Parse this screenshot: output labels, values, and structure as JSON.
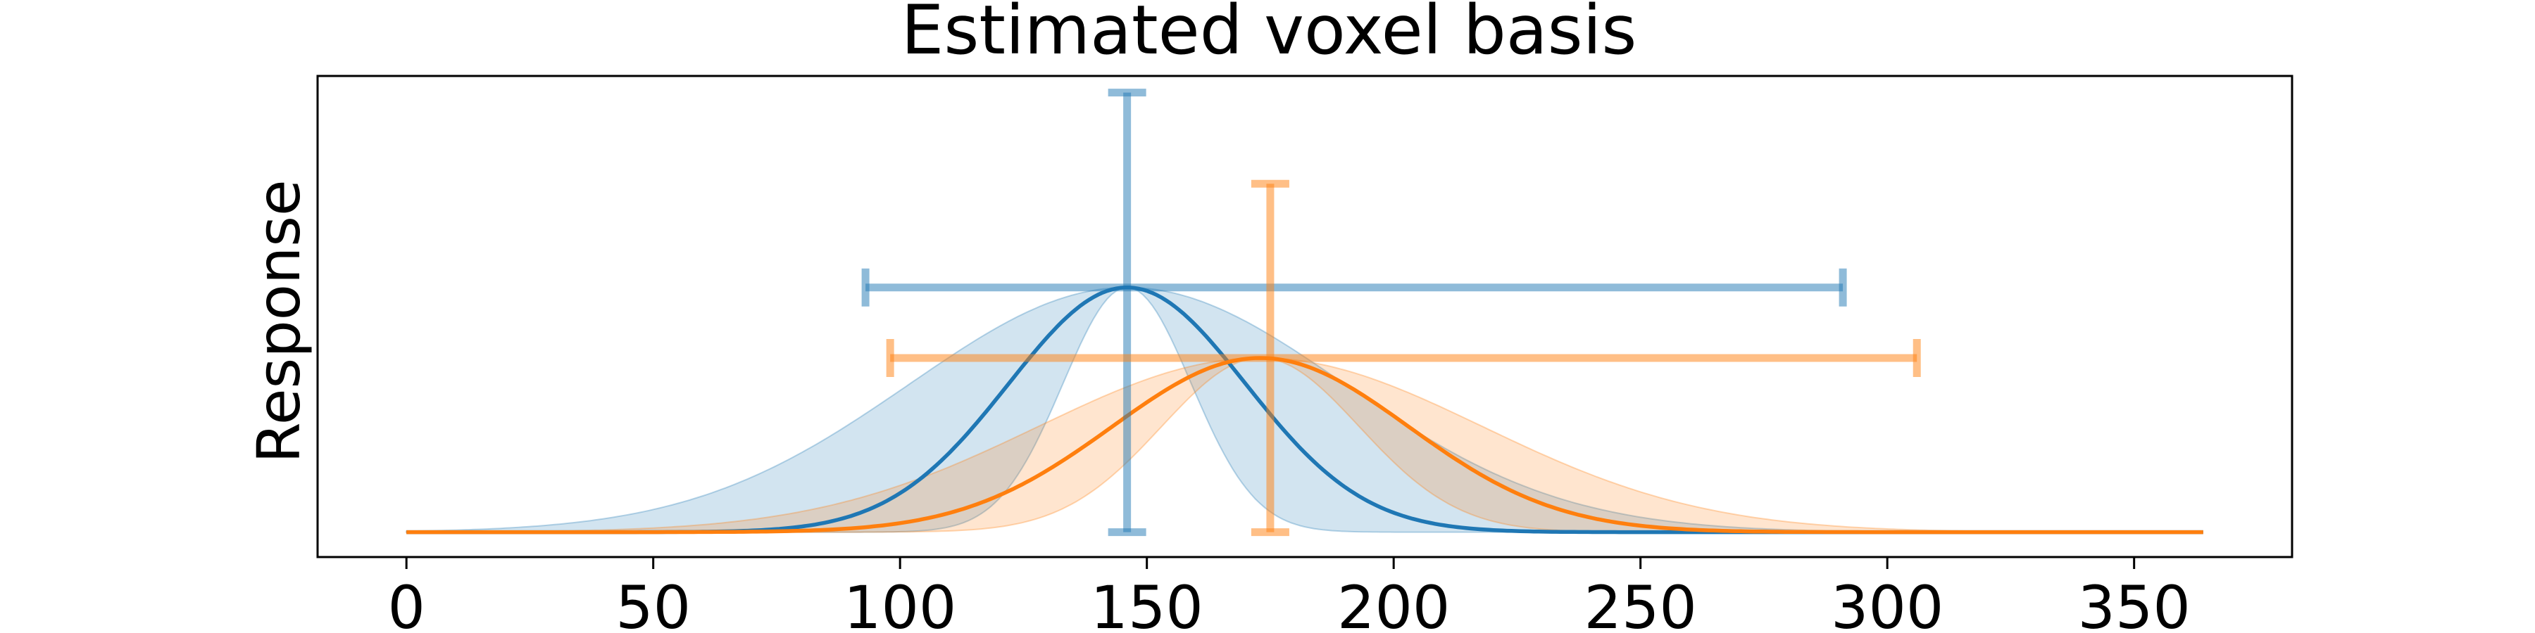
{
  "chart_data": {
    "type": "line",
    "title": "Estimated voxel basis",
    "xlabel": "",
    "ylabel": "Response",
    "xlim": [
      -18,
      382
    ],
    "ylim": [
      -0.06,
      1.1
    ],
    "xticks": [
      0,
      50,
      100,
      150,
      200,
      250,
      300,
      350
    ],
    "xtick_labels": [
      "0",
      "50",
      "100",
      "150",
      "200",
      "250",
      "300",
      "350"
    ],
    "yticks_visible": false,
    "grid": false,
    "legend": "none",
    "series": [
      {
        "color": "#1f77b4",
        "mean": 146,
        "width": 24,
        "band_width_low": 13,
        "band_width_high": 44,
        "amplitude": 0.59,
        "x_range": [
          0,
          364
        ],
        "center_errorbar": {
          "x": 146,
          "y_low": 0.0,
          "y_high": 1.06
        },
        "width_errorbar": {
          "y": 0.59,
          "x_low": 93,
          "x_high": 291
        }
      },
      {
        "color": "#ff7f0e",
        "mean": 173,
        "width": 30,
        "band_width_low": 20,
        "band_width_high": 45,
        "amplitude": 0.42,
        "x_range": [
          0,
          364
        ],
        "center_errorbar": {
          "x": 175,
          "y_low": 0.0,
          "y_high": 0.84
        },
        "width_errorbar": {
          "y": 0.42,
          "x_low": 98,
          "x_high": 306
        }
      }
    ]
  }
}
